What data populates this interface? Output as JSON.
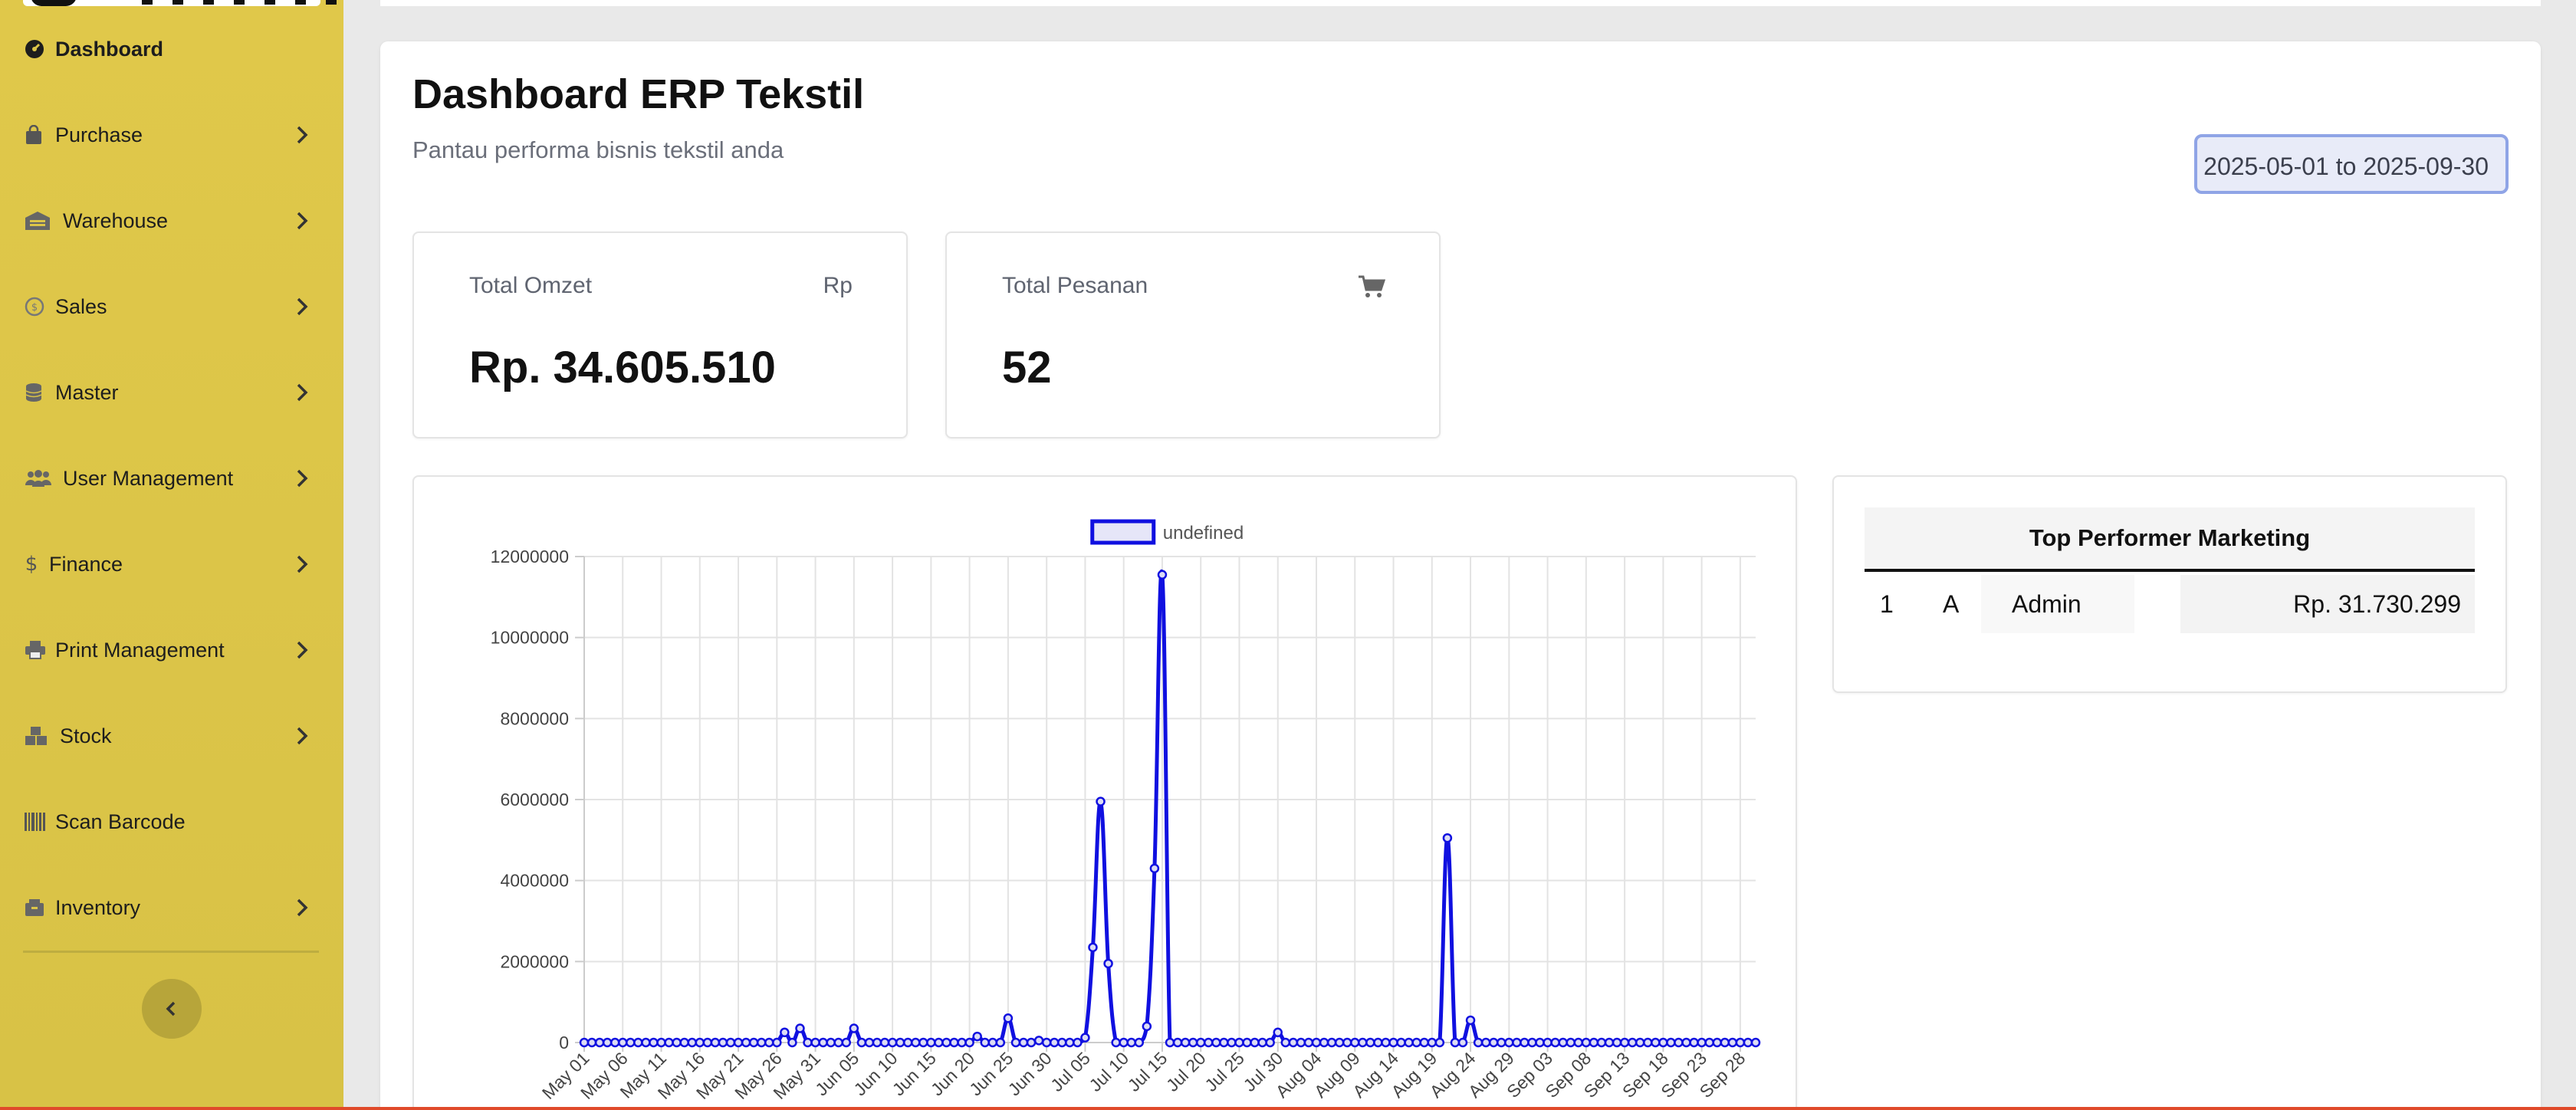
{
  "sidebar": {
    "items": [
      {
        "label": "Dashboard",
        "icon": "dashboard-icon",
        "has_children": false,
        "active": true
      },
      {
        "label": "Purchase",
        "icon": "bag-icon",
        "has_children": true
      },
      {
        "label": "Warehouse",
        "icon": "warehouse-icon",
        "has_children": true
      },
      {
        "label": "Sales",
        "icon": "coin-icon",
        "has_children": true
      },
      {
        "label": "Master",
        "icon": "database-icon",
        "has_children": true
      },
      {
        "label": "User Management",
        "icon": "users-icon",
        "has_children": true
      },
      {
        "label": "Finance",
        "icon": "dollar-icon",
        "has_children": true
      },
      {
        "label": "Print Management",
        "icon": "printer-icon",
        "has_children": true
      },
      {
        "label": "Stock",
        "icon": "boxes-icon",
        "has_children": true
      },
      {
        "label": "Scan Barcode",
        "icon": "barcode-icon",
        "has_children": false
      },
      {
        "label": "Inventory",
        "icon": "inventory-icon",
        "has_children": true
      }
    ],
    "collapse_icon": "chevron-left-icon"
  },
  "header": {
    "title": "Dashboard ERP Tekstil",
    "subtitle": "Pantau performa bisnis tekstil anda",
    "date_range": "2025-05-01 to 2025-09-30"
  },
  "stats": {
    "omzet": {
      "label": "Total Omzet",
      "unit": "Rp",
      "value": "Rp. 34.605.510"
    },
    "pesanan": {
      "label": "Total Pesanan",
      "icon": "cart-icon",
      "value": "52"
    }
  },
  "top_performer": {
    "title": "Top Performer Marketing",
    "rows": [
      {
        "rank": "1",
        "initial": "A",
        "name": "Admin",
        "amount": "Rp. 31.730.299"
      }
    ]
  },
  "colors": {
    "sidebar": "#dcc548",
    "line": "#1010e0",
    "accent_border": "#8fa4e6"
  },
  "chart_data": {
    "type": "line",
    "legend": [
      "undefined"
    ],
    "legend_position": "top",
    "grid": true,
    "ylim": [
      0,
      12000000
    ],
    "yticks": [
      "0",
      "2000000",
      "4000000",
      "6000000",
      "8000000",
      "10000000",
      "12000000"
    ],
    "x_tick_labels": [
      "May 01",
      "May 06",
      "May 11",
      "May 16",
      "May 21",
      "May 26",
      "May 31",
      "Jun 05",
      "Jun 10",
      "Jun 15",
      "Jun 20",
      "Jun 25",
      "Jun 30",
      "Jul 05",
      "Jul 10",
      "Jul 15",
      "Jul 20",
      "Jul 25",
      "Jul 30",
      "Aug 04",
      "Aug 09",
      "Aug 14",
      "Aug 19",
      "Aug 24",
      "Aug 29",
      "Sep 03",
      "Sep 08",
      "Sep 13",
      "Sep 18",
      "Sep 23",
      "Sep 28"
    ],
    "series": [
      {
        "name": "undefined",
        "points": [
          {
            "x": "May 27",
            "y": 250000
          },
          {
            "x": "May 28",
            "y": 0
          },
          {
            "x": "May 29",
            "y": 350000
          },
          {
            "x": "Jun 05",
            "y": 350000
          },
          {
            "x": "Jun 21",
            "y": 150000
          },
          {
            "x": "Jun 25",
            "y": 600000
          },
          {
            "x": "Jun 29",
            "y": 50000
          },
          {
            "x": "Jul 05",
            "y": 120000
          },
          {
            "x": "Jul 06",
            "y": 2350000
          },
          {
            "x": "Jul 07",
            "y": 5950000
          },
          {
            "x": "Jul 08",
            "y": 1950000
          },
          {
            "x": "Jul 13",
            "y": 400000
          },
          {
            "x": "Jul 14",
            "y": 4300000
          },
          {
            "x": "Jul 15",
            "y": 11550000
          },
          {
            "x": "Jul 30",
            "y": 250000
          },
          {
            "x": "Aug 21",
            "y": 5050000
          },
          {
            "x": "Aug 24",
            "y": 550000
          }
        ]
      }
    ]
  }
}
